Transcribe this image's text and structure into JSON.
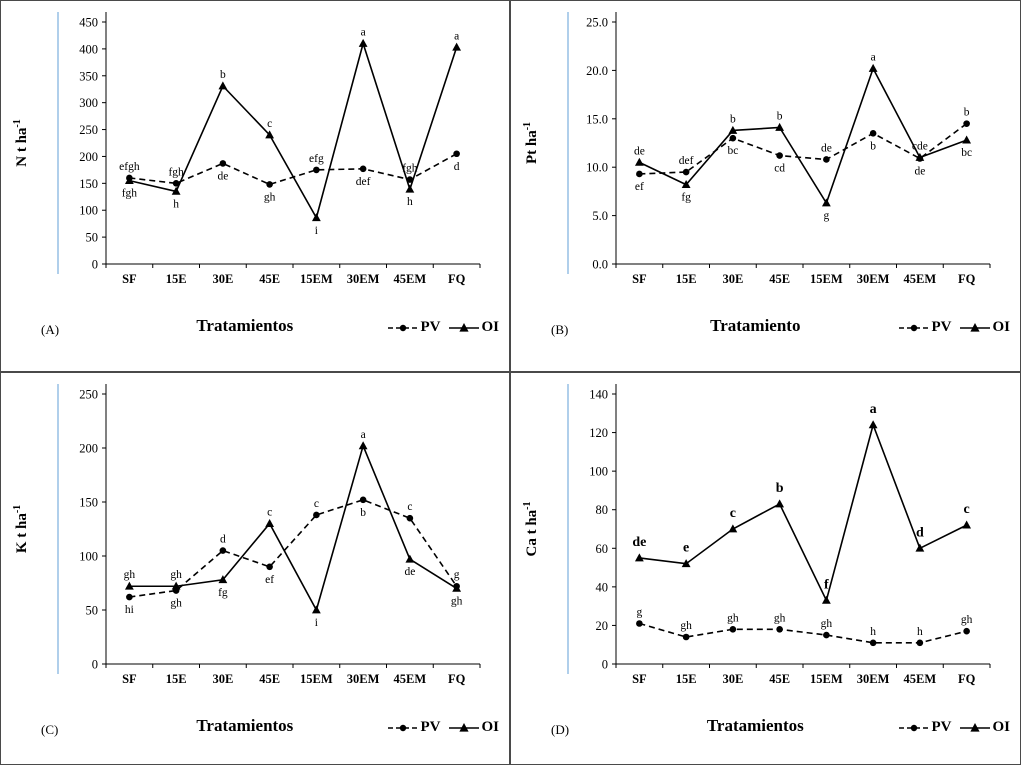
{
  "colors": {
    "accent_line": "#9dc3e6",
    "series": "#000000",
    "border": "#4a4a4a"
  },
  "chart_data": [
    {
      "type": "line",
      "panel_label": "(A)",
      "ylabel": "N t ha",
      "ylabel_sup": "-1",
      "xlabel": "Tratamientos",
      "ylim": [
        0,
        450
      ],
      "ystep": 50,
      "ytick_decimals": 0,
      "grid": false,
      "legend_position": "bottom-right",
      "categories": [
        "SF",
        "15E",
        "30E",
        "45E",
        "15EM",
        "30EM",
        "45EM",
        "FQ"
      ],
      "series": [
        {
          "name": "PV",
          "line": "dashed",
          "marker": "circle",
          "values": [
            160,
            150,
            187,
            148,
            175,
            177,
            157,
            205
          ],
          "point_labels": [
            "efgh",
            "fgh",
            "de",
            "gh",
            "efg",
            "def",
            "fgh",
            "d"
          ],
          "label_pos": [
            "above",
            "above",
            "below",
            "below",
            "above",
            "below",
            "above",
            "below"
          ]
        },
        {
          "name": "OI",
          "line": "solid",
          "marker": "triangle",
          "values": [
            155,
            135,
            331,
            240,
            86,
            410,
            139,
            403
          ],
          "point_labels": [
            "fgh",
            "h",
            "b",
            "c",
            "i",
            "a",
            "h",
            "a"
          ],
          "label_pos": [
            "below",
            "below",
            "above",
            "above",
            "below",
            "above",
            "below",
            "above"
          ]
        }
      ]
    },
    {
      "type": "line",
      "panel_label": "(B)",
      "ylabel": "Pt ha",
      "ylabel_sup": "-1",
      "xlabel": "Tratamiento",
      "ylim": [
        0,
        25
      ],
      "ystep": 5,
      "ytick_decimals": 1,
      "grid": false,
      "legend_position": "bottom-right",
      "categories": [
        "SF",
        "15E",
        "30E",
        "45E",
        "15EM",
        "30EM",
        "45EM",
        "FQ"
      ],
      "series": [
        {
          "name": "PV",
          "line": "dashed",
          "marker": "circle",
          "values": [
            9.3,
            9.5,
            13.0,
            11.2,
            10.8,
            13.5,
            10.9,
            14.5
          ],
          "point_labels": [
            "ef",
            "def",
            "bc",
            "cd",
            "de",
            "b",
            "de",
            "b"
          ],
          "label_pos": [
            "below",
            "above",
            "below",
            "below",
            "above",
            "below",
            "below",
            "above"
          ]
        },
        {
          "name": "OI",
          "line": "solid",
          "marker": "triangle",
          "values": [
            10.5,
            8.2,
            13.8,
            14.1,
            6.3,
            20.2,
            11.0,
            12.8
          ],
          "point_labels": [
            "de",
            "fg",
            "b",
            "b",
            "g",
            "a",
            "cde",
            "bc"
          ],
          "label_pos": [
            "above",
            "below",
            "above",
            "above",
            "below",
            "above",
            "above",
            "below"
          ]
        }
      ]
    },
    {
      "type": "line",
      "panel_label": "(C)",
      "ylabel": "K t ha",
      "ylabel_sup": "-1",
      "xlabel": "Tratamientos",
      "ylim": [
        0,
        250
      ],
      "ystep": 50,
      "ytick_decimals": 0,
      "grid": false,
      "legend_position": "bottom-right",
      "categories": [
        "SF",
        "15E",
        "30E",
        "45E",
        "15EM",
        "30EM",
        "45EM",
        "FQ"
      ],
      "series": [
        {
          "name": "PV",
          "line": "dashed",
          "marker": "circle",
          "values": [
            62,
            68,
            105,
            90,
            138,
            152,
            135,
            72
          ],
          "point_labels": [
            "hi",
            "gh",
            "d",
            "ef",
            "c",
            "b",
            "c",
            "g"
          ],
          "label_pos": [
            "below",
            "below",
            "above",
            "below",
            "above",
            "below",
            "above",
            "above"
          ]
        },
        {
          "name": "OI",
          "line": "solid",
          "marker": "triangle",
          "values": [
            72,
            72,
            78,
            130,
            50,
            202,
            97,
            70
          ],
          "point_labels": [
            "gh",
            "gh",
            "fg",
            "c",
            "i",
            "a",
            "de",
            "gh"
          ],
          "label_pos": [
            "above",
            "above",
            "below",
            "above",
            "below",
            "above",
            "below",
            "below"
          ]
        }
      ]
    },
    {
      "type": "line",
      "panel_label": "(D)",
      "ylabel": "Ca t ha",
      "ylabel_sup": "-1",
      "xlabel": "Tratamientos",
      "ylim": [
        0,
        140
      ],
      "ystep": 20,
      "ytick_decimals": 0,
      "grid": false,
      "legend_position": "bottom-right",
      "categories": [
        "SF",
        "15E",
        "30E",
        "45E",
        "15EM",
        "30EM",
        "45EM",
        "FQ"
      ],
      "series": [
        {
          "name": "PV",
          "line": "dashed",
          "marker": "circle",
          "values": [
            21,
            14,
            18,
            18,
            15,
            11,
            11,
            17
          ],
          "point_labels": [
            "g",
            "gh",
            "gh",
            "gh",
            "gh",
            "h",
            "h",
            "gh"
          ],
          "label_pos": [
            "above",
            "above",
            "above",
            "above",
            "above",
            "above",
            "above",
            "above"
          ]
        },
        {
          "name": "OI",
          "line": "solid",
          "marker": "triangle",
          "values": [
            55,
            52,
            70,
            83,
            33,
            124,
            60,
            72
          ],
          "point_labels": [
            "de",
            "e",
            "c",
            "b",
            "f",
            "a",
            "d",
            "c"
          ],
          "label_pos": [
            "above",
            "above",
            "above",
            "above",
            "above",
            "above",
            "above",
            "above"
          ],
          "label_bold": true,
          "label_size": 14
        }
      ]
    }
  ]
}
